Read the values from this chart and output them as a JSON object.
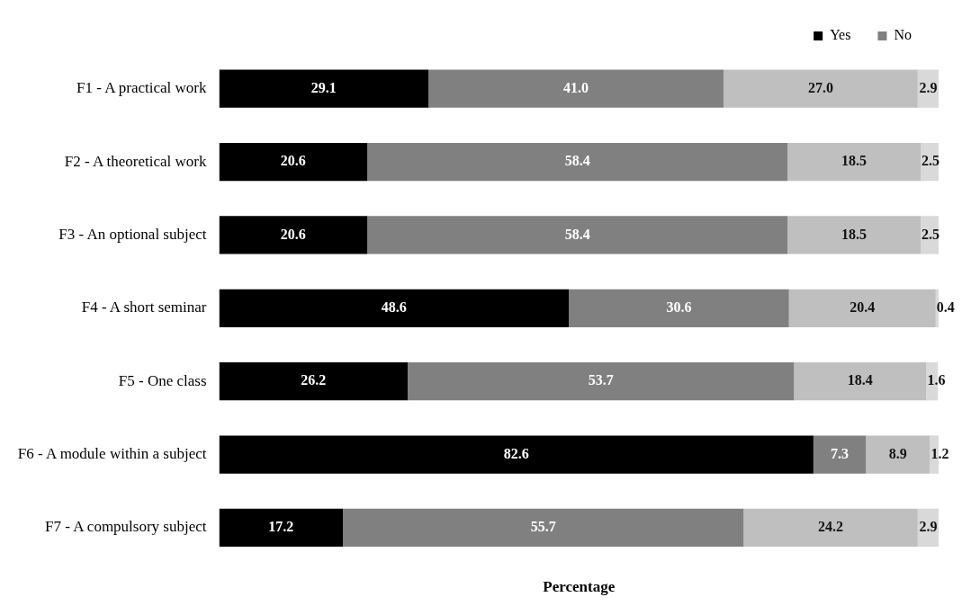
{
  "chart_data": {
    "type": "bar",
    "orientation": "horizontal",
    "stacked": true,
    "xlabel": "Percentage",
    "categories": [
      "F1 - A practical work",
      "F2 - A theoretical work",
      "F3 - An optional subject",
      "F4 - A short seminar",
      "F5 - One class",
      "F6 - A module within a subject",
      "F7 - A compulsory subject"
    ],
    "series": [
      {
        "name": "Yes",
        "color": "#000000",
        "values": [
          29.1,
          20.6,
          20.6,
          48.6,
          26.2,
          82.6,
          17.2
        ],
        "value_labels": [
          "29.1",
          "20.6",
          "20.6",
          "48.6",
          "26.2",
          "82.6",
          "17.2"
        ]
      },
      {
        "name": "No",
        "color": "#808080",
        "values": [
          41.0,
          58.4,
          58.4,
          30.6,
          53.7,
          7.3,
          55.7
        ],
        "value_labels": [
          "41.0",
          "58.4",
          "58.4",
          "30.6",
          "53.7",
          "7.3",
          "55.7"
        ]
      },
      {
        "color": "#bfbfbf",
        "values": [
          27.0,
          18.5,
          18.5,
          20.4,
          18.4,
          8.9,
          24.2
        ],
        "value_labels": [
          "27.0",
          "18.5",
          "18.5",
          "20.4",
          "18.4",
          "8.9",
          "24.2"
        ]
      },
      {
        "color": "#d9d9d9",
        "values": [
          2.9,
          2.5,
          2.5,
          0.4,
          1.6,
          1.2,
          2.9
        ],
        "value_labels": [
          "2.9",
          "2.5",
          "2.5",
          "0.4",
          "1.6",
          "1.2",
          "2.9"
        ]
      }
    ],
    "xlim": [
      0,
      100
    ],
    "tick_labels": "y",
    "grid": false,
    "legend": "top right"
  }
}
